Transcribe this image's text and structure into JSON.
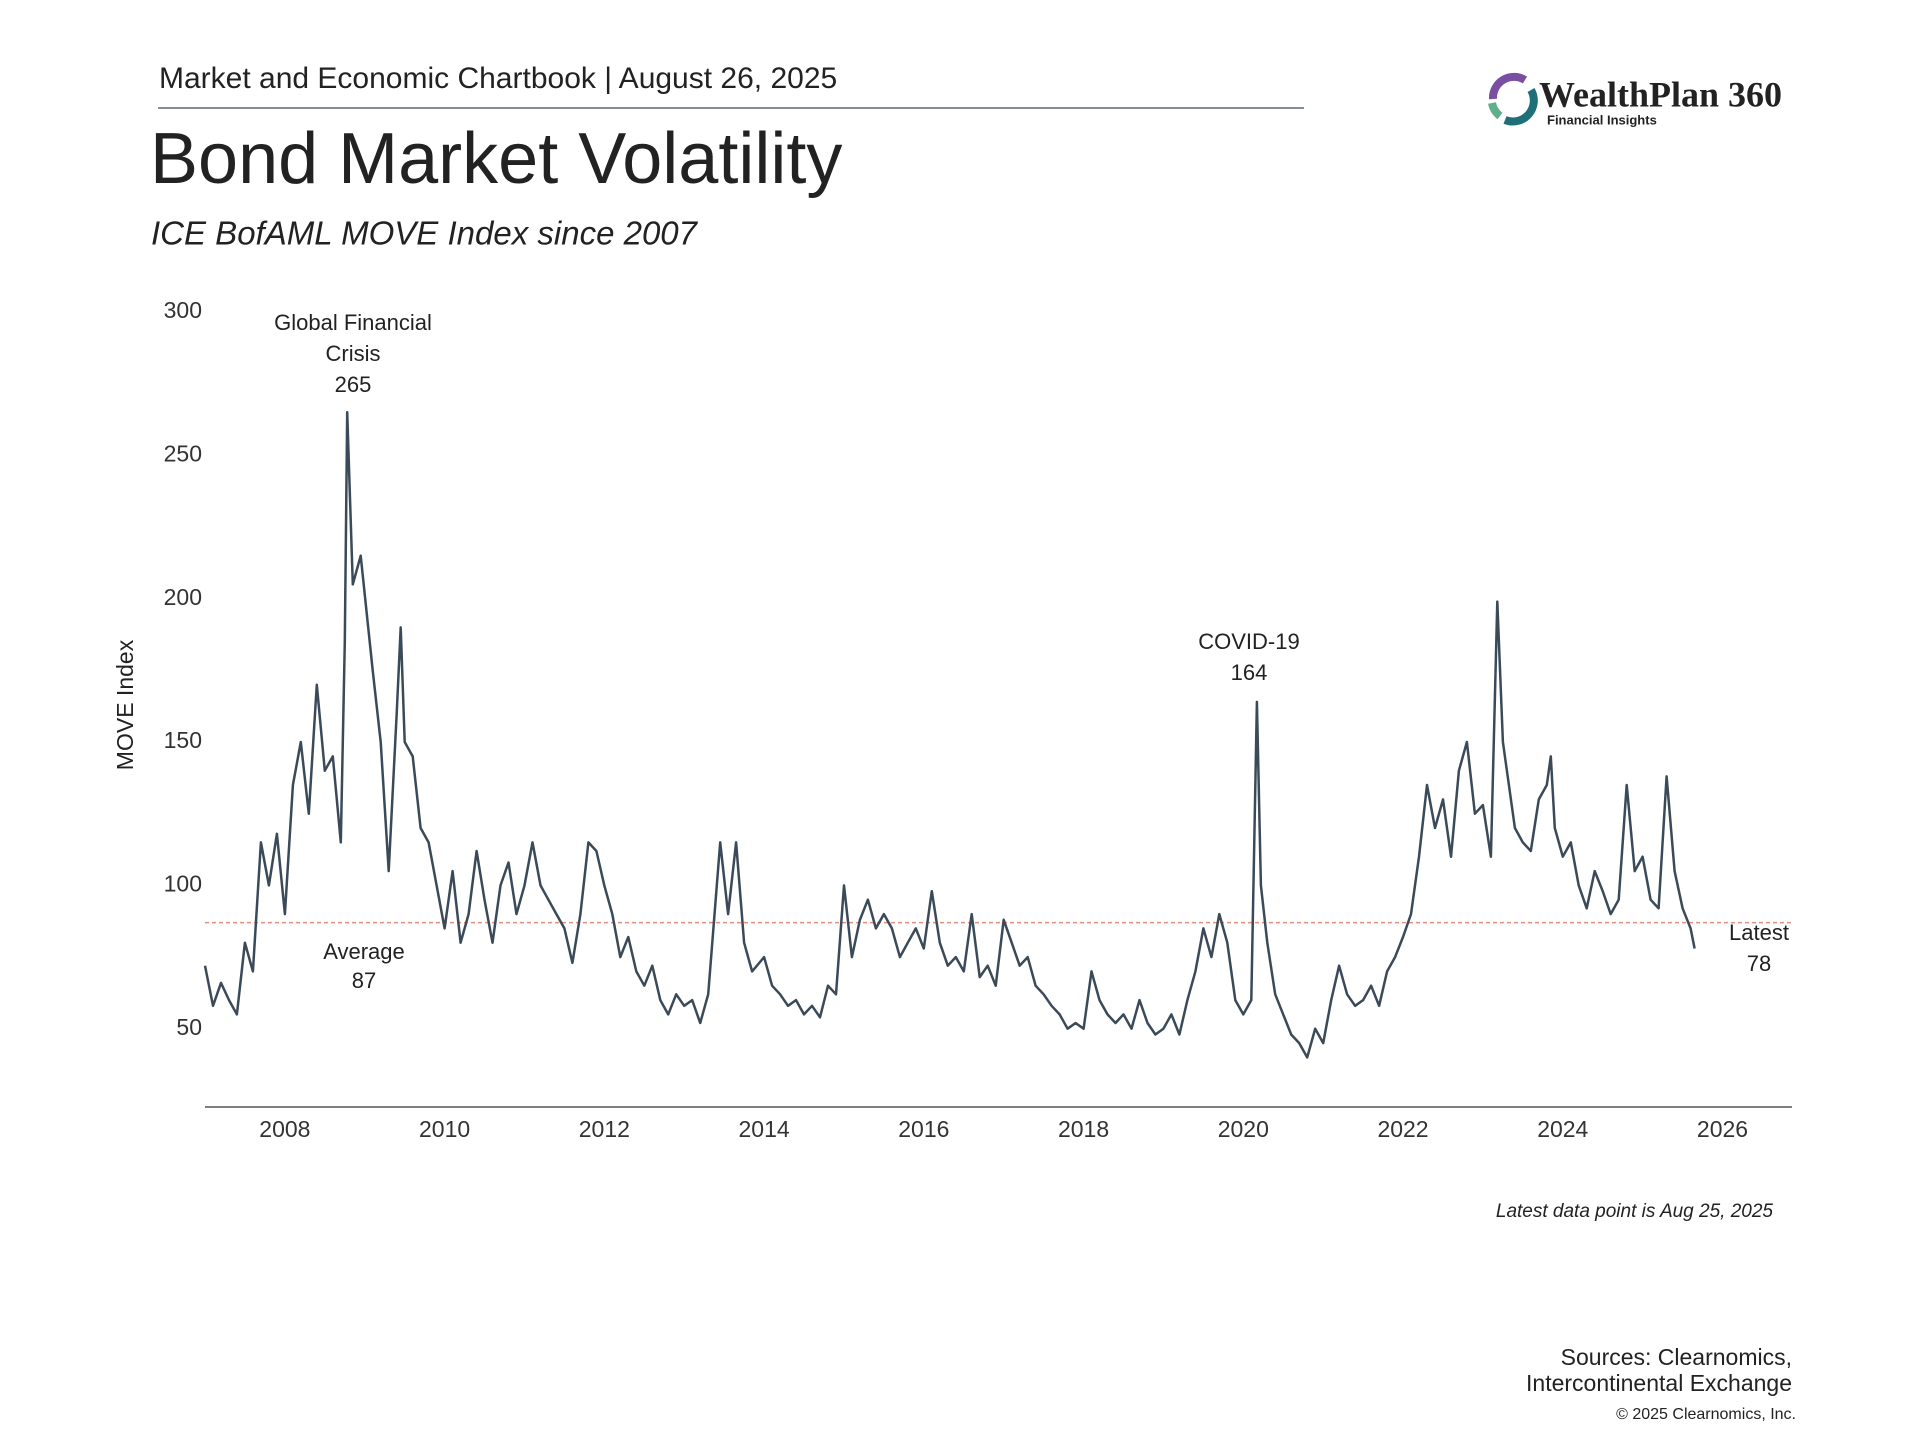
{
  "header": {
    "text": "Market and Economic Chartbook | August 26, 2025"
  },
  "logo": {
    "name": "WealthPlan 360",
    "tagline": "Financial Insights"
  },
  "chart_data": {
    "type": "line",
    "title": "Bond Market Volatility",
    "subtitle": "ICE BofAML MOVE Index since 2007",
    "y_label": "MOVE Index",
    "x": [
      2007.0,
      2007.1,
      2007.2,
      2007.3,
      2007.4,
      2007.5,
      2007.6,
      2007.7,
      2007.8,
      2007.9,
      2008.0,
      2008.1,
      2008.2,
      2008.3,
      2008.4,
      2008.5,
      2008.6,
      2008.7,
      2008.75,
      2008.78,
      2008.85,
      2008.95,
      2009.1,
      2009.2,
      2009.3,
      2009.4,
      2009.45,
      2009.5,
      2009.6,
      2009.7,
      2009.8,
      2009.9,
      2010.0,
      2010.1,
      2010.2,
      2010.3,
      2010.4,
      2010.5,
      2010.6,
      2010.7,
      2010.8,
      2010.9,
      2011.0,
      2011.1,
      2011.2,
      2011.3,
      2011.4,
      2011.5,
      2011.6,
      2011.7,
      2011.8,
      2011.9,
      2012.0,
      2012.1,
      2012.2,
      2012.3,
      2012.4,
      2012.5,
      2012.6,
      2012.7,
      2012.8,
      2012.9,
      2013.0,
      2013.1,
      2013.2,
      2013.3,
      2013.45,
      2013.55,
      2013.65,
      2013.75,
      2013.85,
      2014.0,
      2014.1,
      2014.2,
      2014.3,
      2014.4,
      2014.5,
      2014.6,
      2014.7,
      2014.8,
      2014.9,
      2015.0,
      2015.1,
      2015.2,
      2015.3,
      2015.4,
      2015.5,
      2015.6,
      2015.7,
      2015.8,
      2015.9,
      2016.0,
      2016.1,
      2016.2,
      2016.3,
      2016.4,
      2016.5,
      2016.6,
      2016.7,
      2016.8,
      2016.9,
      2017.0,
      2017.1,
      2017.2,
      2017.3,
      2017.4,
      2017.5,
      2017.6,
      2017.7,
      2017.8,
      2017.9,
      2018.0,
      2018.1,
      2018.2,
      2018.3,
      2018.4,
      2018.5,
      2018.6,
      2018.7,
      2018.8,
      2018.9,
      2019.0,
      2019.1,
      2019.2,
      2019.3,
      2019.4,
      2019.5,
      2019.6,
      2019.7,
      2019.8,
      2019.9,
      2020.0,
      2020.1,
      2020.17,
      2020.22,
      2020.3,
      2020.4,
      2020.5,
      2020.6,
      2020.7,
      2020.8,
      2020.9,
      2021.0,
      2021.1,
      2021.2,
      2021.3,
      2021.4,
      2021.5,
      2021.6,
      2021.7,
      2021.8,
      2021.9,
      2022.0,
      2022.1,
      2022.2,
      2022.3,
      2022.4,
      2022.5,
      2022.6,
      2022.7,
      2022.8,
      2022.9,
      2023.0,
      2023.1,
      2023.18,
      2023.25,
      2023.3,
      2023.4,
      2023.5,
      2023.6,
      2023.7,
      2023.8,
      2023.85,
      2023.9,
      2024.0,
      2024.1,
      2024.2,
      2024.3,
      2024.4,
      2024.5,
      2024.6,
      2024.7,
      2024.8,
      2024.9,
      2025.0,
      2025.1,
      2025.2,
      2025.3,
      2025.4,
      2025.5,
      2025.6,
      2025.65
    ],
    "series": [
      {
        "name": "MOVE Index",
        "color": "#3b4a59",
        "values": [
          72,
          58,
          66,
          60,
          55,
          80,
          70,
          115,
          100,
          118,
          90,
          135,
          150,
          125,
          170,
          140,
          145,
          115,
          185,
          265,
          205,
          215,
          175,
          150,
          105,
          160,
          190,
          150,
          145,
          120,
          115,
          100,
          85,
          105,
          80,
          90,
          112,
          95,
          80,
          100,
          108,
          90,
          100,
          115,
          100,
          95,
          90,
          85,
          73,
          90,
          115,
          112,
          100,
          90,
          75,
          82,
          70,
          65,
          72,
          60,
          55,
          62,
          58,
          60,
          52,
          62,
          115,
          90,
          115,
          80,
          70,
          75,
          65,
          62,
          58,
          60,
          55,
          58,
          54,
          65,
          62,
          100,
          75,
          88,
          95,
          85,
          90,
          85,
          75,
          80,
          85,
          78,
          98,
          80,
          72,
          75,
          70,
          90,
          68,
          72,
          65,
          88,
          80,
          72,
          75,
          65,
          62,
          58,
          55,
          50,
          52,
          50,
          70,
          60,
          55,
          52,
          55,
          50,
          60,
          52,
          48,
          50,
          55,
          48,
          60,
          70,
          85,
          75,
          90,
          80,
          60,
          55,
          60,
          164,
          100,
          80,
          62,
          55,
          48,
          45,
          40,
          50,
          45,
          60,
          72,
          62,
          58,
          60,
          65,
          58,
          70,
          75,
          82,
          90,
          110,
          135,
          120,
          130,
          110,
          140,
          150,
          125,
          128,
          110,
          199,
          150,
          140,
          120,
          115,
          112,
          130,
          135,
          145,
          120,
          110,
          115,
          100,
          92,
          105,
          98,
          90,
          95,
          135,
          105,
          110,
          95,
          92,
          138,
          105,
          92,
          85,
          78
        ]
      }
    ],
    "xlim": [
      2007.0,
      2026.87
    ],
    "ylim": [
      22.7,
      300
    ],
    "xticks": [
      2008,
      2010,
      2012,
      2014,
      2016,
      2018,
      2020,
      2022,
      2024,
      2026
    ],
    "yticks": [
      50,
      100,
      150,
      200,
      250,
      300
    ],
    "grid": false,
    "average": {
      "label": "Average",
      "value": 87,
      "color": "#e0907c"
    },
    "latest": {
      "label": "Latest",
      "value": 78
    },
    "annotations": [
      {
        "lines": [
          "Global Financial",
          "Crisis"
        ],
        "value": 265
      },
      {
        "lines": [
          "COVID-19"
        ],
        "value": 164
      }
    ],
    "note": "Latest data point is Aug 25, 2025"
  },
  "footer": {
    "sources": [
      "Sources: Clearnomics,",
      "Intercontinental Exchange"
    ],
    "copyright": "© 2025 Clearnomics, Inc."
  }
}
